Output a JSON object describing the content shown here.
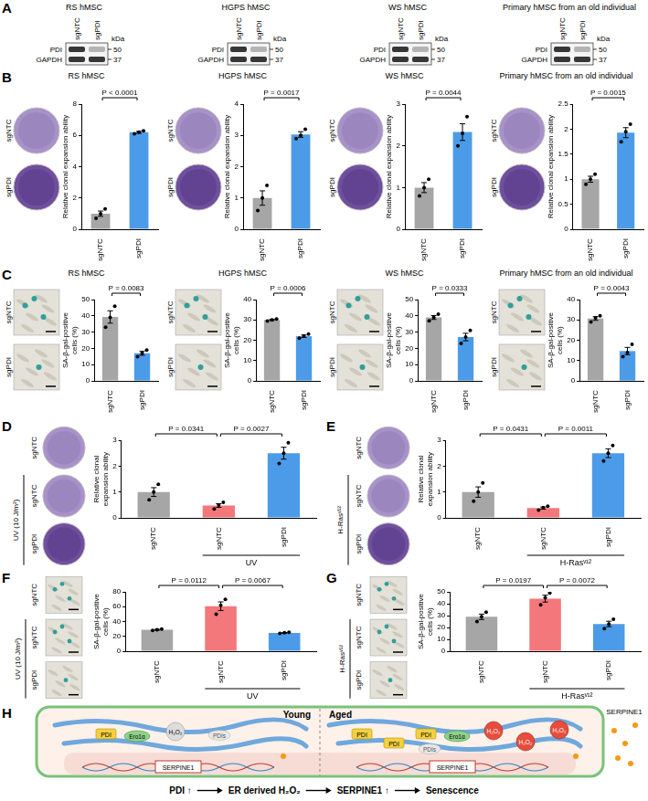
{
  "panel_letters": [
    "A",
    "B",
    "C",
    "D",
    "E",
    "F",
    "G",
    "H"
  ],
  "blots": {
    "titles": [
      "RS hMSC",
      "HGPS hMSC",
      "WS hMSC",
      "Primary hMSC from an old individual"
    ],
    "lanes": [
      "sgNTC",
      "sgPDI"
    ],
    "proteins": [
      "PDI",
      "GAPDH"
    ],
    "unit": "kDa",
    "markers": [
      "50",
      "37"
    ]
  },
  "chart_data": [
    {
      "type": "bar",
      "title": "RS hMSC",
      "ylabel": "Relative clonal expansion ability",
      "categories": [
        "sgNTC",
        "sgPDI"
      ],
      "values": [
        1.0,
        6.2
      ],
      "errors": [
        0.17,
        0.06
      ],
      "points": [
        [
          0.7,
          1.0,
          1.3
        ],
        [
          6.1,
          6.2,
          6.3
        ]
      ],
      "colors": [
        "#a6a6a6",
        "#4c9be8"
      ],
      "ylim": [
        0,
        8
      ],
      "yticks": [
        0,
        2,
        4,
        6,
        8
      ],
      "grid": false,
      "comparisons": [
        {
          "pair": [
            0,
            1
          ],
          "label": "P < 0.0001"
        }
      ],
      "image_rows": [
        "sgNTC",
        "sgPDI"
      ]
    },
    {
      "type": "bar",
      "title": "HGPS hMSC",
      "ylabel": "Relative clonal expansion ability",
      "categories": [
        "sgNTC",
        "sgPDI"
      ],
      "values": [
        1.0,
        3.03
      ],
      "errors": [
        0.23,
        0.09
      ],
      "points": [
        [
          0.6,
          1.0,
          1.4
        ],
        [
          2.9,
          3.0,
          3.2
        ]
      ],
      "colors": [
        "#a6a6a6",
        "#4c9be8"
      ],
      "ylim": [
        0,
        4
      ],
      "yticks": [
        0,
        1,
        2,
        3,
        4
      ],
      "grid": false,
      "comparisons": [
        {
          "pair": [
            0,
            1
          ],
          "label": "P = 0.0017"
        }
      ],
      "image_rows": [
        "sgNTC",
        "sgPDI"
      ]
    },
    {
      "type": "bar",
      "title": "WS hMSC",
      "ylabel": "Relative clonal expansion ability",
      "categories": [
        "sgNTC",
        "sgPDI"
      ],
      "values": [
        1.0,
        2.33
      ],
      "errors": [
        0.12,
        0.2
      ],
      "points": [
        [
          0.8,
          1.0,
          1.2
        ],
        [
          2.0,
          2.3,
          2.7
        ]
      ],
      "colors": [
        "#a6a6a6",
        "#4c9be8"
      ],
      "ylim": [
        0,
        3
      ],
      "yticks": [
        0,
        1,
        2,
        3
      ],
      "grid": false,
      "comparisons": [
        {
          "pair": [
            0,
            1
          ],
          "label": "P = 0.0044"
        }
      ],
      "image_rows": [
        "sgNTC",
        "sgPDI"
      ]
    },
    {
      "type": "bar",
      "title": "Primary hMSC from an old individual",
      "ylabel": "Relative clonal expansion ability",
      "categories": [
        "sgNTC",
        "sgPDI"
      ],
      "values": [
        1.0,
        1.93
      ],
      "errors": [
        0.06,
        0.1
      ],
      "points": [
        [
          0.9,
          1.0,
          1.1
        ],
        [
          1.75,
          1.95,
          2.1
        ]
      ],
      "colors": [
        "#a6a6a6",
        "#4c9be8"
      ],
      "ylim": [
        0,
        2.5
      ],
      "yticks": [
        0,
        0.5,
        1,
        1.5,
        2,
        2.5
      ],
      "grid": false,
      "comparisons": [
        {
          "pair": [
            0,
            1
          ],
          "label": "P = 0.0015"
        }
      ],
      "image_rows": [
        "sgNTC",
        "sgPDI"
      ]
    },
    {
      "type": "bar",
      "title": "RS hMSC",
      "ylabel": "SA-β-gal-positive cells (%)",
      "categories": [
        "sgNTC",
        "sgPDI"
      ],
      "values": [
        39.3,
        17
      ],
      "errors": [
        3.8,
        1.2
      ],
      "points": [
        [
          33,
          39,
          46
        ],
        [
          15,
          17,
          19
        ]
      ],
      "colors": [
        "#a6a6a6",
        "#4c9be8"
      ],
      "ylim": [
        0,
        50
      ],
      "yticks": [
        0,
        10,
        20,
        30,
        40,
        50
      ],
      "grid": false,
      "comparisons": [
        {
          "pair": [
            0,
            1
          ],
          "label": "P = 0.0083"
        }
      ],
      "image_rows": [
        "sgNTC",
        "sgPDI"
      ]
    },
    {
      "type": "bar",
      "title": "HGPS hMSC",
      "ylabel": "SA-β-gal-positive cells (%)",
      "categories": [
        "sgNTC",
        "sgPDI"
      ],
      "values": [
        30,
        22
      ],
      "errors": [
        0.3,
        0.6
      ],
      "points": [
        [
          29.5,
          30,
          30.5
        ],
        [
          21,
          22,
          23
        ]
      ],
      "colors": [
        "#a6a6a6",
        "#4c9be8"
      ],
      "ylim": [
        0,
        40
      ],
      "yticks": [
        0,
        10,
        20,
        30,
        40
      ],
      "grid": false,
      "comparisons": [
        {
          "pair": [
            0,
            1
          ],
          "label": "P = 0.0006"
        }
      ],
      "image_rows": [
        "sgNTC",
        "sgPDI"
      ]
    },
    {
      "type": "bar",
      "title": "WS hMSC",
      "ylabel": "SA-β-gal-positive cells (%)",
      "categories": [
        "sgNTC",
        "sgPDI"
      ],
      "values": [
        39,
        27
      ],
      "errors": [
        1.2,
        2.3
      ],
      "points": [
        [
          37,
          39,
          41
        ],
        [
          23,
          27,
          31
        ]
      ],
      "colors": [
        "#a6a6a6",
        "#4c9be8"
      ],
      "ylim": [
        0,
        50
      ],
      "yticks": [
        0,
        10,
        20,
        30,
        40,
        50
      ],
      "grid": false,
      "comparisons": [
        {
          "pair": [
            0,
            1
          ],
          "label": "P = 0.0333"
        }
      ],
      "image_rows": [
        "sgNTC",
        "sgPDI"
      ]
    },
    {
      "type": "bar",
      "title": "Primary hMSC from an old individual",
      "ylabel": "SA-β-gal-positive cells (%)",
      "categories": [
        "sgNTC",
        "sgPDI"
      ],
      "values": [
        30.7,
        14.7
      ],
      "errors": [
        0.9,
        1.8
      ],
      "points": [
        [
          29,
          31,
          32
        ],
        [
          12,
          14,
          18
        ]
      ],
      "colors": [
        "#a6a6a6",
        "#4c9be8"
      ],
      "ylim": [
        0,
        40
      ],
      "yticks": [
        0,
        10,
        20,
        30,
        40
      ],
      "grid": false,
      "comparisons": [
        {
          "pair": [
            0,
            1
          ],
          "label": "P = 0.0043"
        }
      ],
      "image_rows": [
        "sgNTC",
        "sgPDI"
      ]
    },
    {
      "type": "bar",
      "ylabel": "Relative clonal expansion ability",
      "categories": [
        "sgNTC",
        "sgNTC",
        "sgPDI"
      ],
      "values": [
        1.0,
        0.48,
        2.5
      ],
      "errors": [
        0.17,
        0.07,
        0.23
      ],
      "points": [
        [
          0.7,
          1.0,
          1.3
        ],
        [
          0.35,
          0.5,
          0.6
        ],
        [
          2.1,
          2.5,
          2.9
        ]
      ],
      "colors": [
        "#a6a6a6",
        "#f2787b",
        "#4c9be8"
      ],
      "ylim": [
        0,
        3
      ],
      "yticks": [
        0,
        1,
        2,
        3
      ],
      "grid": false,
      "comparisons": [
        {
          "pair": [
            0,
            1
          ],
          "label": "P = 0.0341"
        },
        {
          "pair": [
            1,
            2
          ],
          "label": "P = 0.0027"
        }
      ],
      "group_label": "UV",
      "group_members": [
        1,
        2
      ],
      "image_rows": [
        "sgNTC",
        "sgNTC",
        "sgPDI"
      ],
      "image_group_label": "UV (10 J/m²)"
    },
    {
      "type": "bar",
      "ylabel": "Relative clonal expansion ability",
      "categories": [
        "sgNTC",
        "sgNTC",
        "sgPDI"
      ],
      "values": [
        1.0,
        0.38,
        2.5
      ],
      "errors": [
        0.2,
        0.04,
        0.17
      ],
      "points": [
        [
          0.65,
          1.0,
          1.35
        ],
        [
          0.3,
          0.4,
          0.45
        ],
        [
          2.2,
          2.5,
          2.8
        ]
      ],
      "colors": [
        "#a6a6a6",
        "#f2787b",
        "#4c9be8"
      ],
      "ylim": [
        0,
        3
      ],
      "yticks": [
        0,
        1,
        2,
        3
      ],
      "grid": false,
      "comparisons": [
        {
          "pair": [
            0,
            1
          ],
          "label": "P = 0.0431"
        },
        {
          "pair": [
            1,
            2
          ],
          "label": "P = 0.0011"
        }
      ],
      "group_label": "H-Rasᵛ¹²",
      "group_members": [
        1,
        2
      ],
      "image_rows": [
        "sgNTC",
        "sgNTC",
        "sgPDI"
      ],
      "image_group_label": "H-Rasᵛ¹²"
    },
    {
      "type": "bar",
      "ylabel": "SA-β-gal-positive cells (%)",
      "categories": [
        "sgNTC",
        "sgNTC",
        "sgPDI"
      ],
      "values": [
        29,
        60.7,
        24.8
      ],
      "errors": [
        0.6,
        5.8,
        0.4
      ],
      "points": [
        [
          28,
          29,
          30
        ],
        [
          50,
          62,
          70
        ],
        [
          24,
          25,
          25.5
        ]
      ],
      "colors": [
        "#a6a6a6",
        "#f2787b",
        "#4c9be8"
      ],
      "ylim": [
        0,
        80
      ],
      "yticks": [
        0,
        20,
        40,
        60,
        80
      ],
      "grid": false,
      "comparisons": [
        {
          "pair": [
            0,
            1
          ],
          "label": "P = 0.0112"
        },
        {
          "pair": [
            1,
            2
          ],
          "label": "P = 0.0067"
        }
      ],
      "group_label": "UV",
      "group_members": [
        1,
        2
      ],
      "image_rows": [
        "sgNTC",
        "sgNTC",
        "sgPDI"
      ],
      "image_group_label": "UV (10 J/m²)"
    },
    {
      "type": "bar",
      "ylabel": "SA-β-gal-positive cells (%)",
      "categories": [
        "sgNTC",
        "sgNTC",
        "sgPDI"
      ],
      "values": [
        29,
        44.3,
        23
      ],
      "errors": [
        2.3,
        2.9,
        2.3
      ],
      "points": [
        [
          25,
          29,
          33
        ],
        [
          39,
          45,
          49
        ],
        [
          19,
          23,
          27
        ]
      ],
      "colors": [
        "#a6a6a6",
        "#f2787b",
        "#4c9be8"
      ],
      "ylim": [
        0,
        50
      ],
      "yticks": [
        0,
        10,
        20,
        30,
        40,
        50
      ],
      "grid": false,
      "comparisons": [
        {
          "pair": [
            0,
            1
          ],
          "label": "P = 0.0197"
        },
        {
          "pair": [
            1,
            2
          ],
          "label": "P = 0.0072"
        }
      ],
      "group_label": "H-Rasᵛ¹²",
      "group_members": [
        1,
        2
      ],
      "image_rows": [
        "sgNTC",
        "sgNTC",
        "sgPDI"
      ],
      "image_group_label": "H-Rasᵛ¹²"
    }
  ],
  "diagram": {
    "left_label": "Young",
    "right_label": "Aged",
    "pdi": "PDI",
    "pdis": "PDIs",
    "ero": "Ero1α",
    "h2o2": "H₂O₂",
    "gene": "SERPINE1",
    "secreted": "SERPINE1",
    "flow": [
      "PDI ↑",
      "ER derived H₂O₂",
      "SERPINE1 ↑",
      "Senescence"
    ]
  }
}
